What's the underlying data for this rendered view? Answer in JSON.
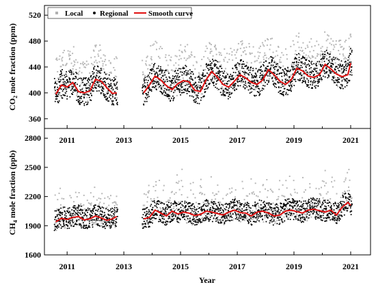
{
  "chart_data": [
    {
      "type": "scatter",
      "panel": "top",
      "ylabel_main": "CO",
      "ylabel_sub": "2",
      "ylabel_rest": " mole fraction (ppm)",
      "xlim": [
        2010.2,
        2021.7
      ],
      "ylim": [
        345,
        535
      ],
      "x_ticks": [
        2011,
        2013,
        2015,
        2017,
        2019,
        2021
      ],
      "x_tick_labels": [
        "2011",
        "2013",
        "2015",
        "2017",
        "2019",
        "2021"
      ],
      "y_ticks": [
        360,
        400,
        440,
        480,
        520
      ],
      "y_tick_labels": [
        "360",
        "400",
        "440",
        "480",
        "520"
      ],
      "legend": {
        "position": "top-left",
        "entries": [
          {
            "label": "Local",
            "marker": "grey-square",
            "color": "#b0b0b0"
          },
          {
            "label": "Regional",
            "marker": "black-dot",
            "color": "#000000"
          },
          {
            "label": "Smooth curve",
            "marker": "red-line",
            "color": "#e01010"
          }
        ]
      },
      "series": [
        {
          "name": "Smooth curve",
          "color": "#e01010",
          "x": [
            2010.6,
            2010.8,
            2011.0,
            2011.2,
            2011.4,
            2011.6,
            2011.8,
            2012.0,
            2012.2,
            2012.4,
            2012.6,
            2012.75,
            2013.7,
            2013.9,
            2014.1,
            2014.3,
            2014.5,
            2014.7,
            2014.9,
            2015.1,
            2015.3,
            2015.5,
            2015.7,
            2015.9,
            2016.1,
            2016.3,
            2016.5,
            2016.7,
            2016.9,
            2017.1,
            2017.3,
            2017.5,
            2017.7,
            2017.9,
            2018.1,
            2018.3,
            2018.5,
            2018.7,
            2018.9,
            2019.1,
            2019.3,
            2019.5,
            2019.7,
            2019.9,
            2020.1,
            2020.3,
            2020.5,
            2020.7,
            2020.9,
            2021.0
          ],
          "y": [
            398,
            412,
            409,
            416,
            402,
            400,
            403,
            421,
            418,
            408,
            399,
            400,
            400,
            412,
            426,
            420,
            411,
            405,
            414,
            419,
            417,
            404,
            402,
            420,
            433,
            424,
            413,
            409,
            418,
            428,
            423,
            416,
            413,
            420,
            436,
            428,
            418,
            413,
            420,
            438,
            434,
            426,
            424,
            428,
            444,
            437,
            429,
            425,
            428,
            446
          ]
        }
      ]
    },
    {
      "type": "scatter",
      "panel": "bottom",
      "ylabel_main": "CH",
      "ylabel_sub": "4",
      "ylabel_rest": " mole fraction (ppb)",
      "xlabel": "Year",
      "xlim": [
        2010.2,
        2021.7
      ],
      "ylim": [
        1600,
        2900
      ],
      "x_ticks": [
        2011,
        2013,
        2015,
        2017,
        2019,
        2021
      ],
      "x_tick_labels": [
        "2011",
        "2013",
        "2015",
        "2017",
        "2019",
        "2021"
      ],
      "y_ticks": [
        1600,
        1900,
        2200,
        2500,
        2800
      ],
      "y_tick_labels": [
        "1600",
        "1900",
        "2200",
        "2500",
        "2800"
      ],
      "series": [
        {
          "name": "Smooth curve",
          "color": "#e01010",
          "x": [
            2010.6,
            2010.8,
            2011.0,
            2011.2,
            2011.4,
            2011.6,
            2011.8,
            2012.0,
            2012.2,
            2012.4,
            2012.6,
            2012.75,
            2013.7,
            2013.9,
            2014.1,
            2014.3,
            2014.5,
            2014.7,
            2014.9,
            2015.1,
            2015.3,
            2015.5,
            2015.7,
            2015.9,
            2016.1,
            2016.3,
            2016.5,
            2016.7,
            2016.9,
            2017.1,
            2017.3,
            2017.5,
            2017.7,
            2017.9,
            2018.1,
            2018.3,
            2018.5,
            2018.7,
            2018.9,
            2019.1,
            2019.3,
            2019.5,
            2019.7,
            2019.9,
            2020.1,
            2020.3,
            2020.5,
            2020.7,
            2020.9,
            2021.0
          ],
          "y": [
            1940,
            1975,
            1965,
            1985,
            1995,
            1960,
            1970,
            2000,
            1980,
            1955,
            1970,
            1995,
            1970,
            1985,
            2060,
            2030,
            2000,
            2050,
            2020,
            2040,
            2030,
            2005,
            2015,
            2050,
            2040,
            2025,
            2010,
            2040,
            2060,
            2035,
            2030,
            2000,
            2040,
            2050,
            2030,
            2000,
            2010,
            2050,
            2060,
            2045,
            2030,
            2060,
            2070,
            2055,
            2040,
            2060,
            2010,
            2090,
            2140,
            2110
          ]
        }
      ],
      "scatter_segments": [
        {
          "x_start": 2010.55,
          "x_end": 2012.78
        },
        {
          "x_start": 2013.65,
          "x_end": 2021.05
        }
      ]
    }
  ]
}
